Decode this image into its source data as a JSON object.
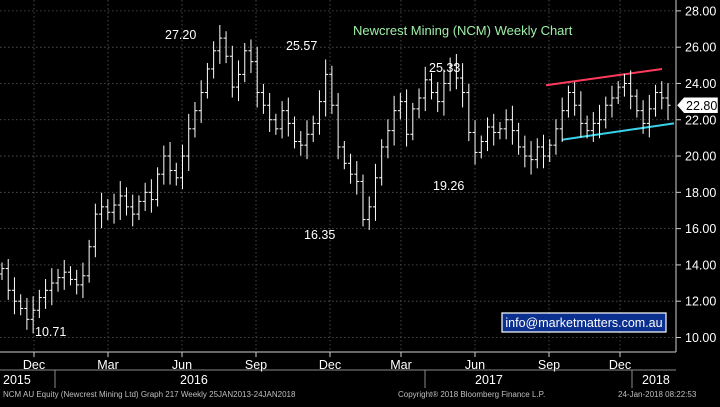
{
  "chart_data": {
    "type": "ohlc",
    "title": "Newcrest Mining (NCM) Weekly Chart",
    "ylim": [
      9.2,
      28.6
    ],
    "y_ticks": [
      "10.00",
      "12.00",
      "14.00",
      "16.00",
      "18.00",
      "20.00",
      "22.00",
      "24.00",
      "26.00",
      "28.00"
    ],
    "y_tick_values": [
      10,
      12,
      14,
      16,
      18,
      20,
      22,
      24,
      26,
      28
    ],
    "month_ticks": [
      "Dec",
      "Mar",
      "Jun",
      "Sep",
      "Dec",
      "Mar",
      "Jun",
      "Sep",
      "Dec"
    ],
    "year_labels": [
      "2015",
      "2016",
      "2017",
      "2018"
    ],
    "last_price": "22.80",
    "annotations": [
      "27.20",
      "25.57",
      "25.33",
      "16.35",
      "19.26",
      "10.71"
    ],
    "watermark": "info@marketmatters.com.au",
    "trendlines": [
      {
        "color": "#ff3b5c",
        "from": 23.9,
        "to": 24.8
      },
      {
        "color": "#38d3ea",
        "from": 20.9,
        "to": 21.8
      }
    ],
    "series": [
      {
        "values": [
          13.8,
          12.6,
          12.0,
          11.6,
          11.0,
          11.5,
          12.2,
          12.6,
          13.0,
          13.3,
          13.6,
          13.2,
          12.9,
          13.4,
          15.0,
          16.8,
          17.2,
          16.9,
          17.3,
          17.8,
          17.2,
          16.8,
          17.5,
          18.0,
          17.6,
          19.0,
          20.0,
          19.2,
          18.8,
          20.0,
          21.5,
          22.5,
          23.5,
          24.8,
          25.8,
          26.5,
          25.5,
          23.8,
          24.5,
          25.8,
          25.2,
          23.5,
          22.8,
          22.0,
          21.5,
          22.5,
          21.8,
          20.8,
          20.6,
          21.2,
          21.8,
          23.0,
          24.5,
          22.8,
          20.5,
          19.6,
          19.0,
          18.6,
          16.5,
          17.2,
          18.8,
          20.5,
          21.4,
          22.5,
          23.0,
          21.2,
          22.6,
          23.2,
          24.2,
          23.5,
          23.0,
          24.0,
          25.0,
          24.3,
          23.5,
          21.3,
          20.2,
          20.8,
          21.6,
          21.3,
          21.5,
          22.0,
          21.4,
          20.5,
          20.0,
          19.8,
          20.5,
          20.0,
          20.6,
          21.5,
          22.5,
          23.5,
          22.8,
          21.8,
          21.4,
          21.8,
          22.0,
          22.8,
          23.2,
          23.8,
          24.0,
          23.3,
          22.5,
          21.8,
          22.6,
          23.5,
          23.2,
          22.8
        ]
      }
    ]
  },
  "footer": {
    "left": "NCM AU Equity (Newcrest Mining Ltd) Graph 217  Weekly 25JAN2013-24JAN2018",
    "center": "Copyright® 2018 Bloomberg Finance L.P.",
    "right": "24-Jan-2018 08:22:53"
  }
}
